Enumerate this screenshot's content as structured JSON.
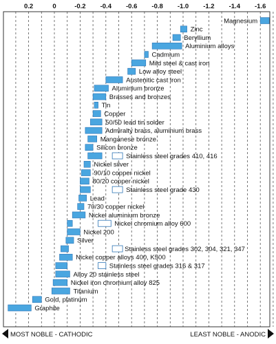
{
  "chart_data": {
    "type": "bar",
    "orientation": "horizontal-range",
    "title": "",
    "xlabel": "",
    "ylabel": "",
    "xlim": [
      0.38,
      -1.74
    ],
    "x_ticks": [
      0.2,
      0,
      -0.2,
      -0.4,
      -0.6,
      -0.8,
      -1.0,
      -1.2,
      -1.4,
      -1.6
    ],
    "x_tick_labels": [
      "0.2",
      "0",
      "-0.2",
      "-0.4",
      "-0.6",
      "-0.8",
      "-1.0",
      "-1.2",
      "-1.4",
      "-1.6"
    ],
    "grid": "vertical dashed",
    "colors": {
      "active": "#4aa6e0",
      "passive": "#ffffff",
      "bar_outline": "#2e75b6",
      "grid": "#555555"
    },
    "footer": {
      "left": "MOST NOBLE - CATHODIC",
      "right": "LEAST NOBLE - ANODIC"
    },
    "metals": [
      {
        "label": "Magnesium",
        "active": [
          -1.6,
          -1.67
        ]
      },
      {
        "label": "Zinc",
        "active": [
          -0.98,
          -1.03
        ]
      },
      {
        "label": "Beryllium",
        "active": [
          -0.92,
          -0.98
        ]
      },
      {
        "label": "Aluminium alloys",
        "active": [
          -0.76,
          -0.99
        ]
      },
      {
        "label": "Cadmium",
        "active": [
          -0.7,
          -0.73
        ]
      },
      {
        "label": "Mild steel & cast iron",
        "active": [
          -0.6,
          -0.71
        ]
      },
      {
        "label": "Low alloy steel",
        "active": [
          -0.57,
          -0.63
        ]
      },
      {
        "label": "Austenitic cast iron",
        "active": [
          -0.4,
          -0.53
        ]
      },
      {
        "label": "Aluminium bronze",
        "active": [
          -0.31,
          -0.42
        ]
      },
      {
        "label": "Brasses and bronzes",
        "active": [
          -0.3,
          -0.4
        ]
      },
      {
        "label": "Tin",
        "active": [
          -0.31,
          -0.34
        ]
      },
      {
        "label": "Copper",
        "active": [
          -0.3,
          -0.36
        ]
      },
      {
        "label": "50/50 lead tin solder",
        "active": [
          -0.28,
          -0.37
        ]
      },
      {
        "label": "Admiralty brass, aluminium brass",
        "active": [
          -0.24,
          -0.37
        ]
      },
      {
        "label": "Manganese bronze",
        "active": [
          -0.26,
          -0.33
        ]
      },
      {
        "label": "Silicon bronze",
        "active": [
          -0.24,
          -0.3
        ]
      },
      {
        "label": "Stainless steel grades 410, 416",
        "active": [
          -0.26,
          -0.37
        ],
        "passive": [
          -0.45,
          -0.53
        ]
      },
      {
        "label": "Nickel silver",
        "active": [
          -0.23,
          -0.28
        ]
      },
      {
        "label": "90/10 copper nickel",
        "active": [
          -0.21,
          -0.28
        ]
      },
      {
        "label": "80/20 copper nickel",
        "active": [
          -0.2,
          -0.27
        ]
      },
      {
        "label": "Stainless steel grade 430",
        "active": [
          -0.2,
          -0.28
        ],
        "passive": [
          -0.45,
          -0.53
        ]
      },
      {
        "label": "Lead",
        "active": [
          -0.19,
          -0.25
        ]
      },
      {
        "label": "70/30 copper nickel",
        "active": [
          -0.18,
          -0.23
        ]
      },
      {
        "label": "Nickel aluminium bronze",
        "active": [
          -0.14,
          -0.24
        ]
      },
      {
        "label": "Nickel chromium alloy 600",
        "active": [
          -0.1,
          -0.14
        ],
        "passive": [
          -0.34,
          -0.44
        ]
      },
      {
        "label": "Nickel 200",
        "active": [
          -0.1,
          -0.2
        ]
      },
      {
        "label": "Silver",
        "active": [
          -0.09,
          -0.15
        ]
      },
      {
        "label": "Stainless steel grades 302, 304, 321, 347",
        "active": [
          -0.05,
          -0.11
        ],
        "passive": [
          -0.45,
          -0.53
        ]
      },
      {
        "label": "Nickel copper alloys 400, K500",
        "active": [
          -0.04,
          -0.14
        ]
      },
      {
        "label": "Stainless steel grades 316 & 317",
        "active": [
          -0.01,
          -0.1
        ],
        "passive": [
          -0.34,
          -0.4
        ]
      },
      {
        "label": "Alloy 20 stainless steel",
        "active": [
          -0.01,
          -0.12
        ]
      },
      {
        "label": "Nickel iron chromium alloy 825",
        "active": [
          0.01,
          -0.1
        ]
      },
      {
        "label": "Titanium",
        "active": [
          0.02,
          -0.12
        ]
      },
      {
        "label": "Gold, platinum",
        "active": [
          0.17,
          0.1
        ]
      },
      {
        "label": "Graphite",
        "active": [
          0.36,
          0.18
        ]
      }
    ]
  }
}
